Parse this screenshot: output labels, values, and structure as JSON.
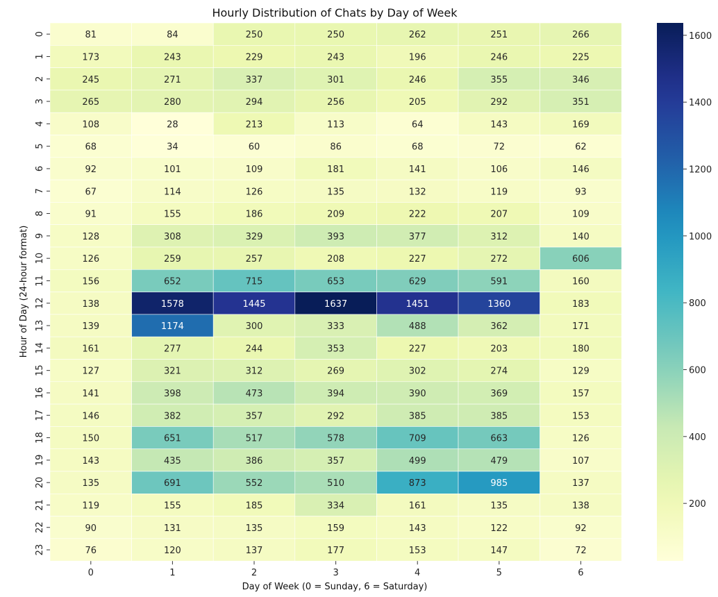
{
  "chart_data": {
    "type": "heatmap",
    "title": "Hourly Distribution of Chats by Day of Week",
    "xlabel": "Day of Week (0 = Sunday, 6 = Saturday)",
    "ylabel": "Hour of Day (24-hour format)",
    "x_categories": [
      "0",
      "1",
      "2",
      "3",
      "4",
      "5",
      "6"
    ],
    "y_categories": [
      "0",
      "1",
      "2",
      "3",
      "4",
      "5",
      "6",
      "7",
      "8",
      "9",
      "10",
      "11",
      "12",
      "13",
      "14",
      "15",
      "16",
      "17",
      "18",
      "19",
      "20",
      "21",
      "22",
      "23"
    ],
    "values": [
      [
        81,
        84,
        250,
        250,
        262,
        251,
        266
      ],
      [
        173,
        243,
        229,
        243,
        196,
        246,
        225
      ],
      [
        245,
        271,
        337,
        301,
        246,
        355,
        346
      ],
      [
        265,
        280,
        294,
        256,
        205,
        292,
        351
      ],
      [
        108,
        28,
        213,
        113,
        64,
        143,
        169
      ],
      [
        68,
        34,
        60,
        86,
        68,
        72,
        62
      ],
      [
        92,
        101,
        109,
        181,
        141,
        106,
        146
      ],
      [
        67,
        114,
        126,
        135,
        132,
        119,
        93
      ],
      [
        91,
        155,
        186,
        209,
        222,
        207,
        109
      ],
      [
        128,
        308,
        329,
        393,
        377,
        312,
        140
      ],
      [
        126,
        259,
        257,
        208,
        227,
        272,
        606
      ],
      [
        156,
        652,
        715,
        653,
        629,
        591,
        160
      ],
      [
        138,
        1578,
        1445,
        1637,
        1451,
        1360,
        183
      ],
      [
        139,
        1174,
        300,
        333,
        488,
        362,
        171
      ],
      [
        161,
        277,
        244,
        353,
        227,
        203,
        180
      ],
      [
        127,
        321,
        312,
        269,
        302,
        274,
        129
      ],
      [
        141,
        398,
        473,
        394,
        390,
        369,
        157
      ],
      [
        146,
        382,
        357,
        292,
        385,
        385,
        153
      ],
      [
        150,
        651,
        517,
        578,
        709,
        663,
        126
      ],
      [
        143,
        435,
        386,
        357,
        499,
        479,
        107
      ],
      [
        135,
        691,
        552,
        510,
        873,
        985,
        137
      ],
      [
        119,
        155,
        185,
        334,
        161,
        135,
        138
      ],
      [
        90,
        131,
        135,
        159,
        143,
        122,
        92
      ],
      [
        76,
        120,
        137,
        177,
        153,
        147,
        72
      ]
    ],
    "colormap": "YlGnBu",
    "colorbar": {
      "min": 28,
      "max": 1637,
      "ticks": [
        200,
        400,
        600,
        800,
        1000,
        1200,
        1400,
        1600
      ]
    },
    "grid": false,
    "legend": "colorbar-right"
  }
}
